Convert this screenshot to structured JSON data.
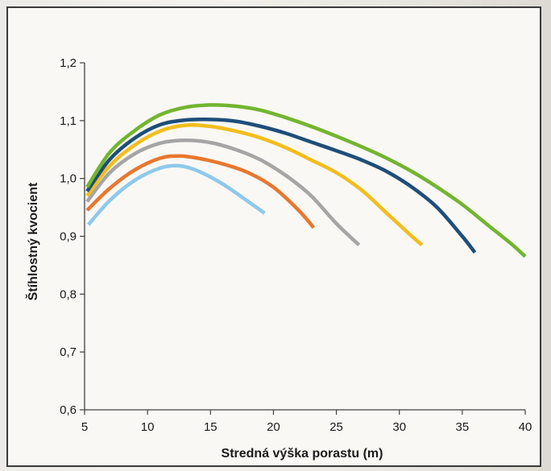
{
  "chart_data": {
    "type": "line",
    "title": "",
    "xlabel": "Stredná výška porastu (m)",
    "ylabel": "Štíhlostný kvocient",
    "xlim": [
      5,
      40
    ],
    "ylim": [
      0.6,
      1.2
    ],
    "x_ticks": [
      "5",
      "10",
      "15",
      "20",
      "25",
      "30",
      "35",
      "40"
    ],
    "y_ticks": [
      "0,6",
      "0,7",
      "0,8",
      "0,9",
      "1,0",
      "1,1",
      "1,2"
    ],
    "grid": false,
    "legend": "none",
    "series": [
      {
        "color": "#8ec9ea",
        "x": [
          5.3,
          7,
          9,
          11,
          12.5,
          14,
          16,
          18,
          19.3
        ],
        "y": [
          0.92,
          0.962,
          0.997,
          1.018,
          1.022,
          1.013,
          0.99,
          0.96,
          0.94
        ]
      },
      {
        "color": "#e8772e",
        "x": [
          5.2,
          7,
          9,
          11,
          12.5,
          14,
          16,
          18,
          20,
          22,
          23.2
        ],
        "y": [
          0.945,
          0.983,
          1.015,
          1.035,
          1.039,
          1.035,
          1.025,
          1.01,
          0.985,
          0.945,
          0.915
        ]
      },
      {
        "color": "#a5a5a5",
        "x": [
          5.2,
          7,
          9,
          11,
          13,
          15,
          17,
          19,
          21,
          23,
          25,
          26.8
        ],
        "y": [
          0.96,
          1.01,
          1.043,
          1.061,
          1.066,
          1.062,
          1.05,
          1.032,
          1.005,
          0.97,
          0.922,
          0.885
        ]
      },
      {
        "color": "#f3bd1c",
        "x": [
          5.2,
          7,
          9,
          11,
          13,
          15,
          17,
          19,
          21,
          23,
          25,
          27,
          29,
          31,
          31.8
        ],
        "y": [
          0.97,
          1.022,
          1.058,
          1.082,
          1.092,
          1.09,
          1.082,
          1.07,
          1.053,
          1.032,
          1.01,
          0.98,
          0.94,
          0.9,
          0.885
        ]
      },
      {
        "color": "#1e4e79",
        "x": [
          5.2,
          7,
          9,
          11,
          13,
          15,
          17,
          19,
          21,
          23,
          25,
          27,
          29,
          31,
          33,
          35,
          36
        ],
        "y": [
          0.978,
          1.033,
          1.07,
          1.093,
          1.101,
          1.102,
          1.099,
          1.09,
          1.078,
          1.063,
          1.048,
          1.032,
          1.012,
          0.985,
          0.95,
          0.9,
          0.872
        ]
      },
      {
        "color": "#72b52f",
        "x": [
          5.2,
          7,
          9,
          11,
          13,
          15,
          17,
          19,
          21,
          23,
          25,
          27,
          29,
          31,
          33,
          35,
          37,
          39,
          40
        ],
        "y": [
          0.985,
          1.045,
          1.083,
          1.11,
          1.123,
          1.127,
          1.125,
          1.118,
          1.105,
          1.09,
          1.073,
          1.055,
          1.035,
          1.012,
          0.985,
          0.955,
          0.92,
          0.885,
          0.865
        ]
      }
    ]
  }
}
